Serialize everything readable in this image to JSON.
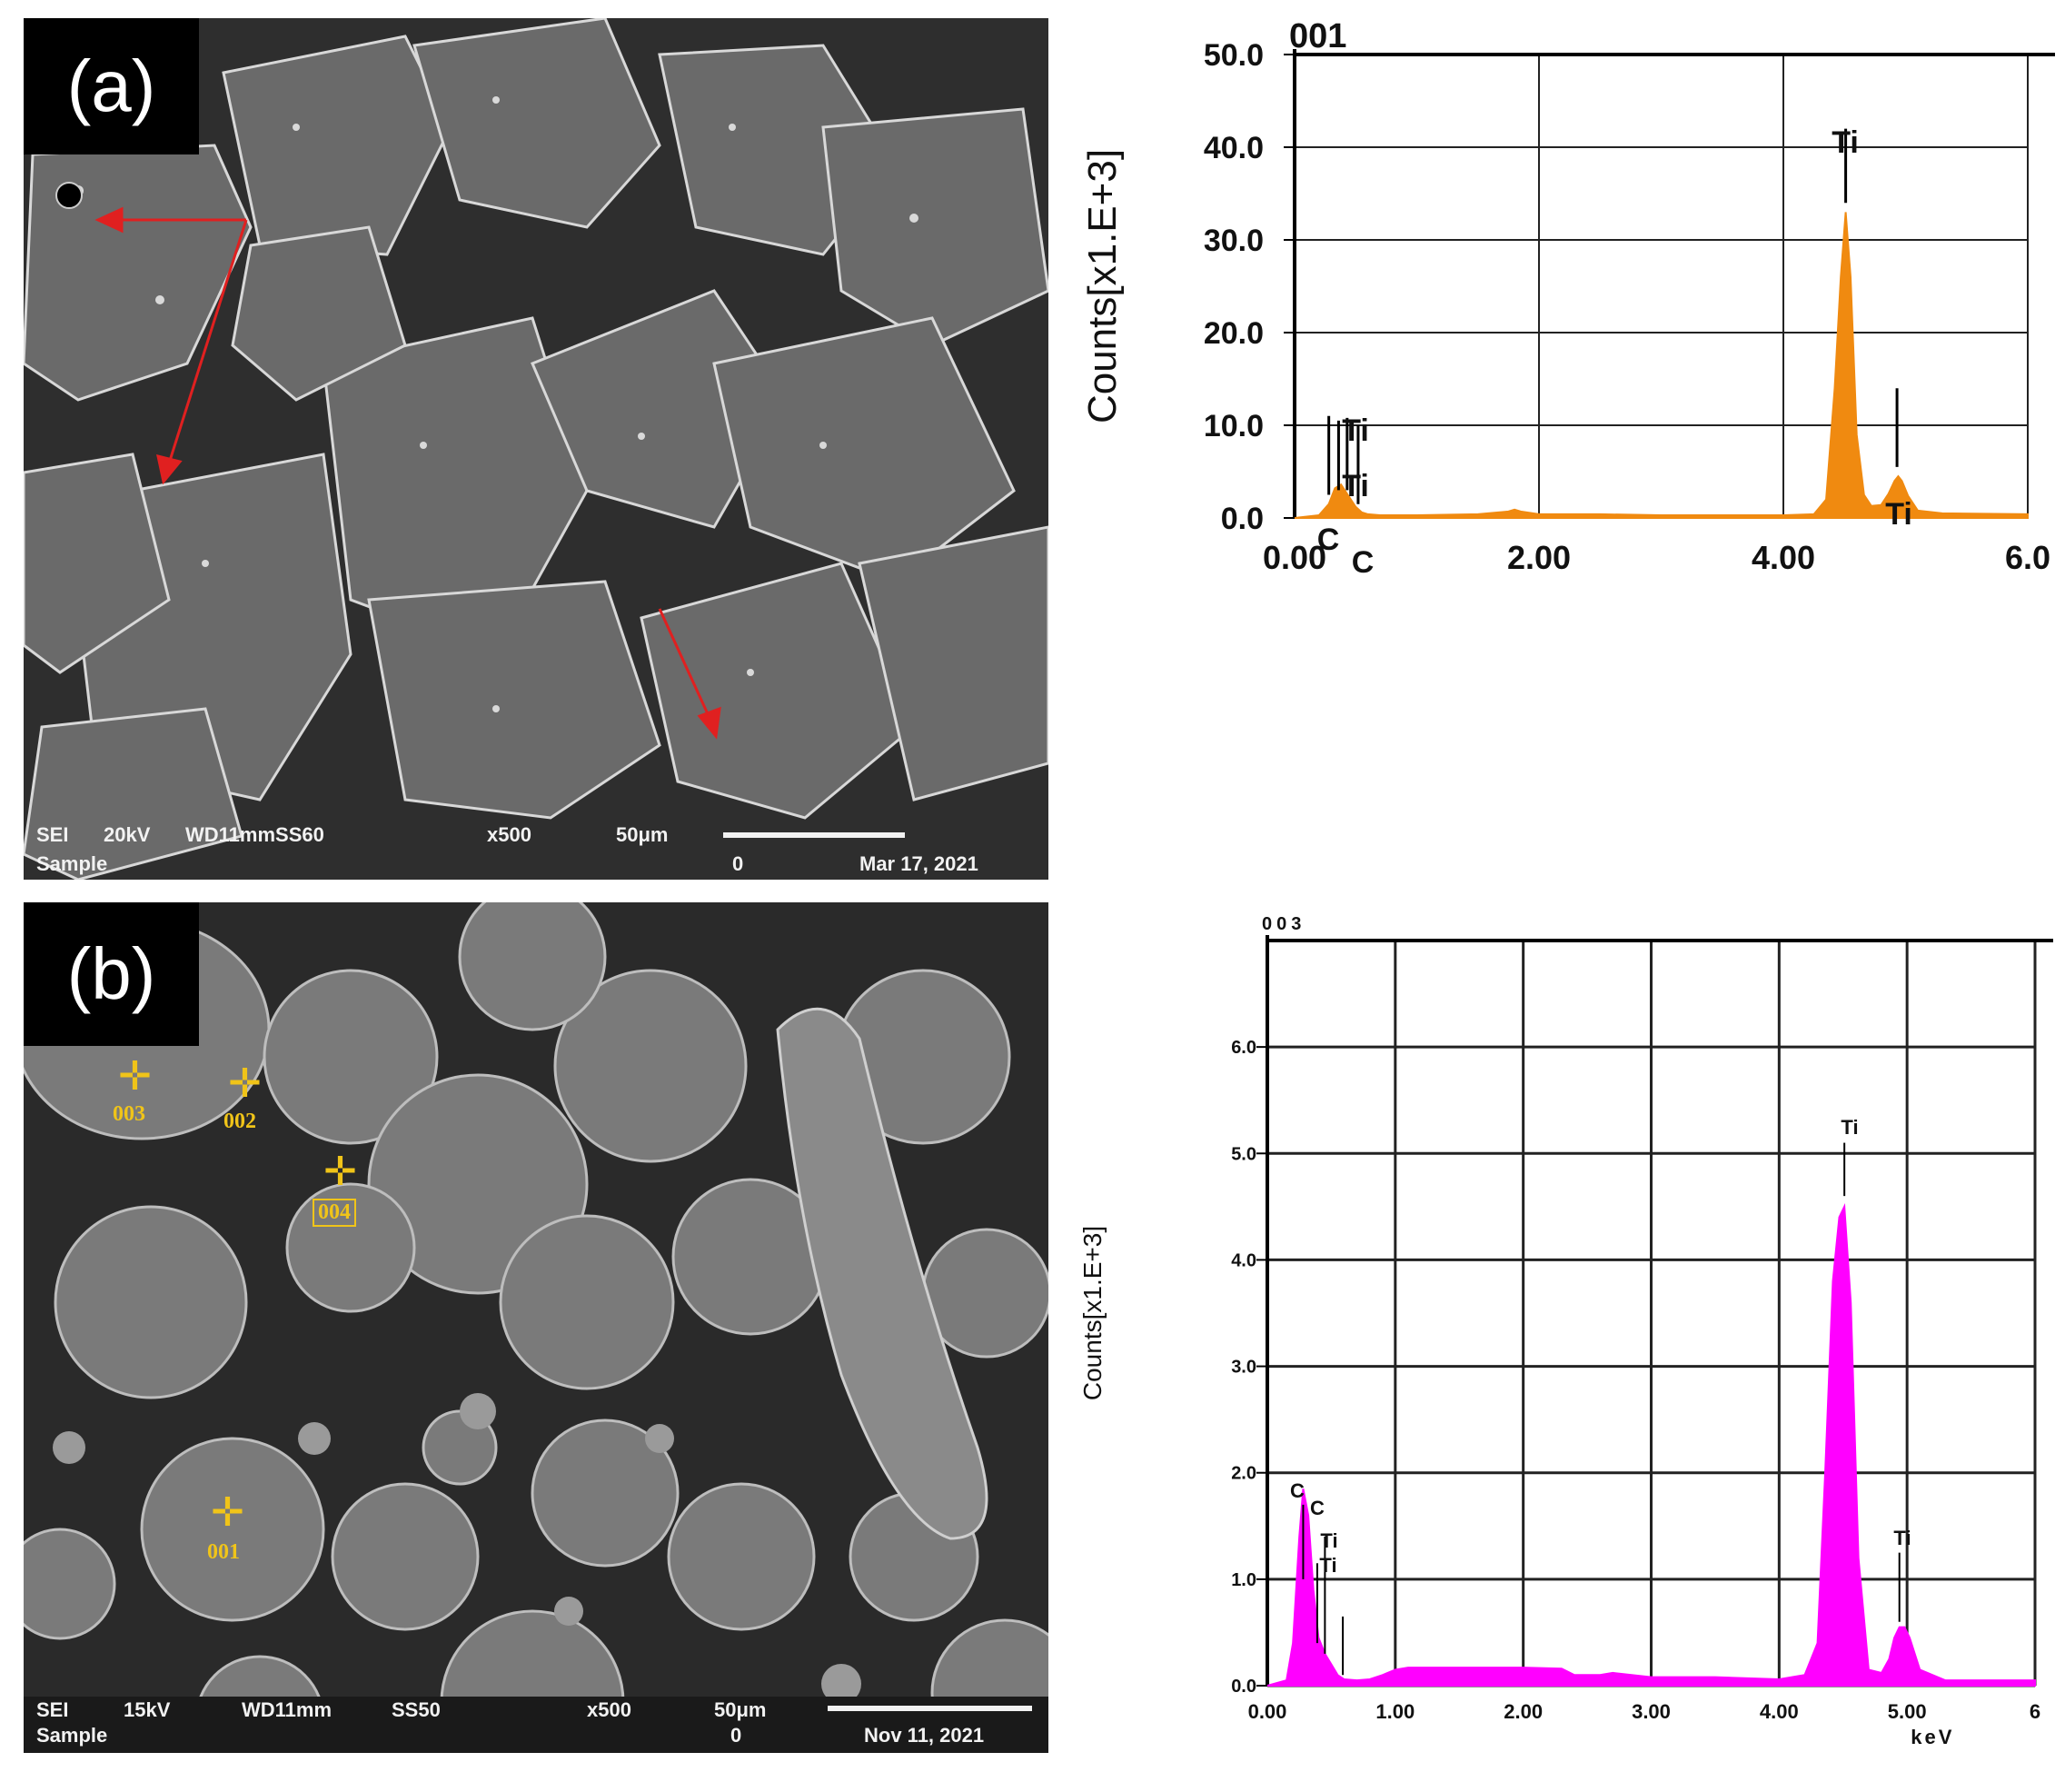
{
  "panel_a": {
    "label": "(a)",
    "databar": {
      "mode": "SEI",
      "voltage": "20kV",
      "wd": "WD11mmSS60",
      "mag": "x500",
      "scale": "50μm",
      "sample": "Sample",
      "zero": "0",
      "date": "Mar 17, 2021"
    }
  },
  "panel_b": {
    "label": "(b)",
    "databar": {
      "mode": "SEI",
      "voltage": "15kV",
      "wd": "WD11mm",
      "ss": "SS50",
      "mag": "x500",
      "scale": "50μm",
      "sample": "Sample",
      "zero": "0",
      "date": "Nov 11, 2021"
    },
    "points": [
      "003",
      "002",
      "004",
      "001"
    ]
  },
  "chart_data": [
    {
      "type": "area",
      "title": "001",
      "ylabel": "Counts[x1.E+3]",
      "xlabel": "",
      "xlim": [
        0,
        6
      ],
      "ylim": [
        0,
        50
      ],
      "x_ticks": [
        "0.00",
        "2.00",
        "4.00",
        "6.0"
      ],
      "y_ticks": [
        "0.0",
        "10.0",
        "20.0",
        "30.0",
        "40.0",
        "50.0"
      ],
      "grid": true,
      "color": "#f08a10",
      "x": [
        0.0,
        0.2,
        0.28,
        0.33,
        0.38,
        0.44,
        0.5,
        0.55,
        0.6,
        0.7,
        1.0,
        1.5,
        1.75,
        1.8,
        1.85,
        2.0,
        2.5,
        3.0,
        3.5,
        4.0,
        4.25,
        4.35,
        4.42,
        4.47,
        4.51,
        4.55,
        4.6,
        4.66,
        4.72,
        4.8,
        4.86,
        4.91,
        4.94,
        4.97,
        5.02,
        5.1,
        5.3,
        6.0
      ],
      "y": [
        0.0,
        0.3,
        1.5,
        3.2,
        3.6,
        2.4,
        1.2,
        0.6,
        0.4,
        0.3,
        0.3,
        0.4,
        0.7,
        0.9,
        0.7,
        0.4,
        0.4,
        0.3,
        0.3,
        0.3,
        0.4,
        2.0,
        14.0,
        26.0,
        33.0,
        26.0,
        9.0,
        2.5,
        1.3,
        1.4,
        2.6,
        4.0,
        4.5,
        4.0,
        2.4,
        0.8,
        0.5,
        0.4
      ],
      "peaks": [
        {
          "label": "Ti",
          "x": 4.51,
          "line_top": 42.0,
          "line_bottom": 34.0
        },
        {
          "label": "Ti",
          "x": 4.93,
          "line_top": 14.0,
          "line_bottom": 5.5
        },
        {
          "label": "C",
          "x": 0.28,
          "line_top": 11.0,
          "line_bottom": 2.5
        },
        {
          "label": "C",
          "x": 0.52,
          "line_top": 10.0,
          "line_bottom": 1.5
        },
        {
          "label": "Ti",
          "x": 0.36,
          "line_top": 10.5,
          "line_bottom": 3.0
        },
        {
          "label": "Ti",
          "x": 0.43,
          "line_top": 10.8,
          "line_bottom": 3.0
        }
      ],
      "peak_labels": [
        "Ti",
        "Ti",
        "Ti",
        "Ti",
        "C",
        "C"
      ]
    },
    {
      "type": "area",
      "title": "003",
      "ylabel": "Counts[x1.E+3]",
      "xlabel": "keV",
      "xlim": [
        0,
        6
      ],
      "ylim": [
        0,
        7
      ],
      "x_ticks": [
        "0.00",
        "1.00",
        "2.00",
        "3.00",
        "4.00",
        "5.00",
        "6"
      ],
      "y_ticks": [
        "0.0",
        "1.0",
        "2.0",
        "3.0",
        "4.0",
        "5.0",
        "6.0"
      ],
      "grid": true,
      "color": "#ff00ff",
      "x": [
        0.0,
        0.15,
        0.2,
        0.25,
        0.28,
        0.32,
        0.36,
        0.4,
        0.45,
        0.5,
        0.55,
        0.6,
        0.7,
        0.8,
        0.9,
        1.0,
        1.1,
        1.5,
        2.0,
        2.3,
        2.4,
        2.6,
        2.7,
        3.0,
        3.5,
        4.0,
        4.2,
        4.3,
        4.36,
        4.42,
        4.47,
        4.51,
        4.56,
        4.62,
        4.7,
        4.8,
        4.86,
        4.9,
        4.94,
        4.98,
        5.02,
        5.1,
        5.3,
        6.0
      ],
      "y": [
        0.0,
        0.05,
        0.4,
        1.4,
        1.85,
        1.6,
        0.9,
        0.45,
        0.3,
        0.2,
        0.1,
        0.06,
        0.05,
        0.06,
        0.1,
        0.15,
        0.17,
        0.17,
        0.17,
        0.16,
        0.1,
        0.1,
        0.12,
        0.08,
        0.08,
        0.06,
        0.1,
        0.4,
        2.0,
        3.8,
        4.4,
        4.5,
        3.6,
        1.2,
        0.15,
        0.12,
        0.25,
        0.45,
        0.55,
        0.55,
        0.45,
        0.15,
        0.05,
        0.05
      ],
      "peaks": [
        {
          "label": "Ti",
          "x": 4.51,
          "line_top": 5.1,
          "line_bottom": 4.6
        },
        {
          "label": "Ti",
          "x": 4.94,
          "line_top": 1.25,
          "line_bottom": 0.6
        },
        {
          "label": "C",
          "x": 0.28,
          "line_top": 1.7,
          "line_bottom": 1.0
        },
        {
          "label": "C",
          "x": 0.45,
          "line_top": 1.4,
          "line_bottom": 0.3
        },
        {
          "label": "Ti",
          "x": 0.39,
          "line_top": 1.15,
          "line_bottom": 0.4
        },
        {
          "label": "Ti",
          "x": 0.59,
          "line_top": 0.65,
          "line_bottom": 0.1
        }
      ],
      "peak_labels": [
        "Ti",
        "Ti",
        "C",
        "C",
        "Ti",
        "Ti"
      ]
    }
  ]
}
